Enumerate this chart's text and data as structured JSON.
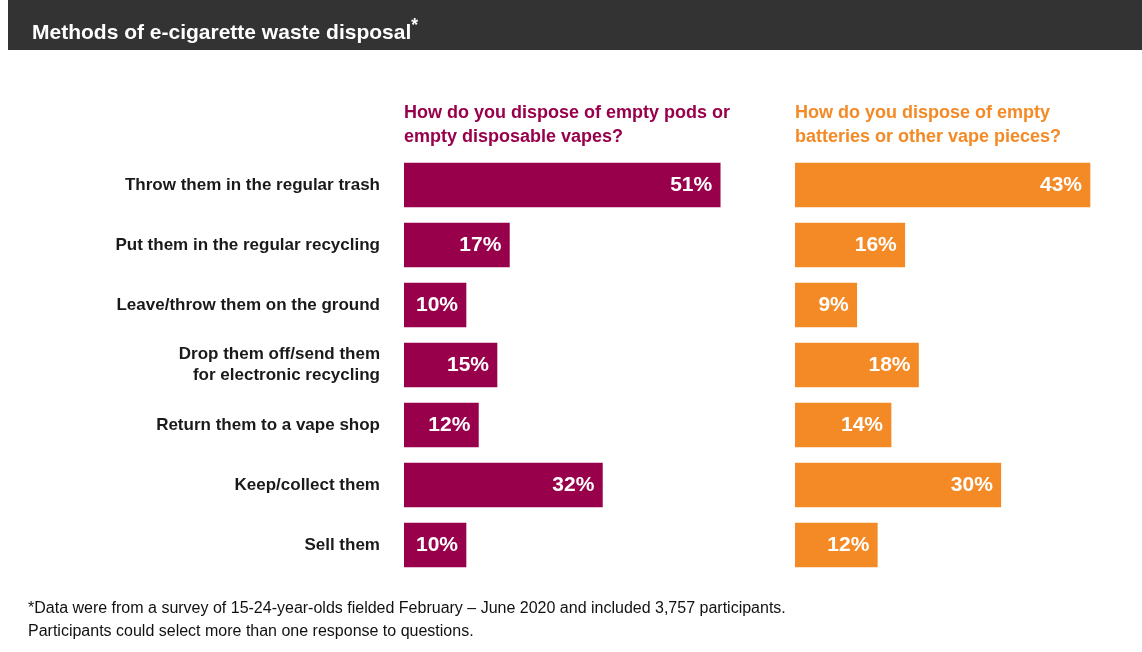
{
  "chart_data": [
    {
      "type": "bar",
      "orientation": "horizontal",
      "title": "Methods of e-cigarette waste disposal$^{*}$",
      "categories": [
        "Throw them in the regular trash",
        "Put them in the regular recycling",
        "Leave/throw them on the ground",
        "Drop them off/send them for electronic recycling",
        "Return them to a vape shop",
        "Keep/collect them",
        "Sell them"
      ],
      "series": [
        {
          "name": "How do you dispose of empty pods or empty disposable vapes?",
          "color": "#98004b",
          "values": [
            51,
            17,
            10,
            15,
            12,
            32,
            10
          ],
          "value_labels": [
            "51%",
            "17%",
            "10%",
            "15%",
            "12%",
            "32%",
            "10%"
          ]
        }
      ],
      "tick_labels": "y",
      "annotations": [
        "*Data were from a survey of 15-24-year-olds fielded February – June 2020 and included 3,757 participants. Participants could select more than one response to questions."
      ]
    },
    {
      "type": "bar",
      "orientation": "horizontal",
      "categories": [
        null,
        null,
        null,
        null,
        null,
        null,
        null
      ],
      "series": [
        {
          "name": "How do you dispose of empty batteries or other vape pieces?",
          "color": "#f48a26",
          "values": [
            43,
            16,
            9,
            18,
            14,
            30,
            12
          ],
          "value_labels": [
            "43%",
            "16%",
            "9%",
            "18%",
            "14%",
            "30%",
            "12%"
          ]
        }
      ],
      "tick_labels": false
    }
  ]
}
